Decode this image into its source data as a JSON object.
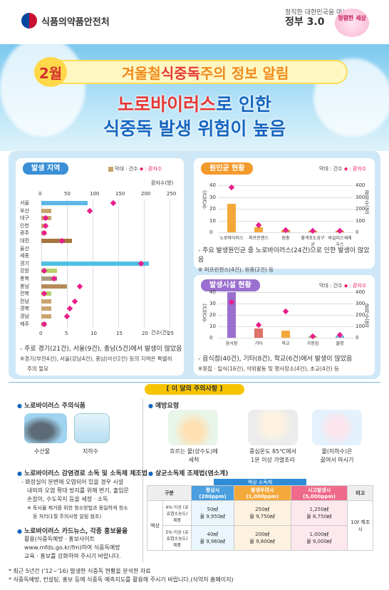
{
  "header": {
    "agency": "식품의약품안전처",
    "gov_small": "정직한 대한민국을 여는",
    "gov_big": "정부 3.0",
    "clean": "청렴한 세상"
  },
  "hero": {
    "month": "2월",
    "pre": "겨울철 ",
    "key": "식중독",
    "post": " 주의 정보 알림",
    "sub1_red": "노로바이러스",
    "sub1_rest": "로 인한",
    "sub2": "식중독 발생 위험이 높음"
  },
  "region": {
    "title": "발생 지역",
    "legend_cases": "막대 : 건수",
    "legend_pat": "◆ : 환자수",
    "pat_axis": "환자수(명)",
    "case_axis": "건수(건)",
    "top_ticks": [
      "0",
      "50",
      "100",
      "150",
      "200",
      "250"
    ],
    "bot_ticks": [
      "0",
      "5",
      "10",
      "15",
      "20",
      "25"
    ],
    "regions": [
      "서울",
      "부산",
      "대구",
      "인천",
      "광주",
      "대전",
      "울산",
      "세종",
      "경기",
      "강원",
      "충북",
      "충남",
      "전북",
      "전남",
      "경북",
      "경남",
      "제주"
    ],
    "cases": [
      9,
      2,
      2,
      1,
      1,
      6,
      0,
      0,
      21,
      3,
      3,
      5,
      2,
      2,
      2,
      2,
      1
    ],
    "patients": [
      140,
      95,
      8,
      8,
      5,
      40,
      0,
      0,
      195,
      5,
      25,
      75,
      5,
      65,
      55,
      50,
      5
    ],
    "note": "- 주로 경기(21건), 서울(9건), 충남(5건)에서 발생이 많았음",
    "note_s1": "※경기(부천4건), 서울(강남4건), 충남(아산2건) 등의 지역은 특별히",
    "note_s2": "주의 필요"
  },
  "cause": {
    "title": "원인균 현황",
    "legend_cases": "막대 : 건수",
    "legend_pat": "◆ : 환자수",
    "left_axis": "(건)건수",
    "right_axis": "환자수(명)",
    "left_ticks": [
      "0",
      "10",
      "20",
      "30",
      "40"
    ],
    "right_ticks": [
      "0",
      "100",
      "200",
      "300",
      "400"
    ],
    "labels": [
      "노로바이러스",
      "퍼프린젠스",
      "원충",
      "황색포도상구균",
      "바실러스세레우스"
    ],
    "cases": [
      24,
      4,
      2,
      1,
      1
    ],
    "patients": [
      380,
      60,
      20,
      10,
      15
    ],
    "note": "- 주요 발생원인균 중 노로바이러스(24건)으로 인한 발생이 많았음",
    "note_s": "※ 퍼프린젠스(4건), 원충(2건) 등"
  },
  "facility": {
    "title": "발생시설 현황",
    "legend_cases": "막대 : 건수",
    "legend_pat": "◆ : 환자수",
    "left_axis": "(건)건수",
    "right_axis": "환자수(명)",
    "left_ticks": [
      "0",
      "10",
      "20",
      "30",
      "40"
    ],
    "right_ticks": [
      "0",
      "100",
      "200",
      "300",
      "400"
    ],
    "labels": [
      "음식점",
      "기타",
      "학교",
      "가정집",
      "불명"
    ],
    "cases": [
      40,
      8,
      6,
      1,
      2
    ],
    "patients": [
      310,
      110,
      230,
      15,
      25
    ],
    "note": "- 음식점(40건), 기타(8건), 학교(6건)에서 발생이 많았음",
    "note_s": "※횟집 · 일식(16건), 야외활동 및 행사장소(4건), 초교(4건) 등"
  },
  "notice": {
    "title": "[ 이 달의 주의사항 ]",
    "foods_h": "노로바이러스 주의식품",
    "food1": "수산물",
    "food2": "지하수",
    "prevent_h": "예방요령",
    "p1a": "흐르는 물(상수도)에",
    "p1b": "세척",
    "p2a": "중심온도 85℃에서",
    "p2b": "1분 이상 가열조리",
    "p3a": "물(지하수)은",
    "p3b": "끓여서 마시기",
    "dis_h": "노로바이러스 감염경로 소독 및 소독제 제조법",
    "dis1": "- 화장실이 분변에 오염되어 있을 경우 시설",
    "dis2": "내외의 오염 확대 방지를 위해 변기, 출입문",
    "dis3": "손잡이, 수도꼭지 등을 세정 · 소독",
    "dis4": "※ 토사물 제거를 위한 청소방법과 동일하게 청소",
    "dis5": "등 처리(1월 주의사항 알림 참조)",
    "card_h": "노로바이러스 카드뉴스, 각종 홍보물을",
    "card1": "활용(식중독예방 · 홍보사이트",
    "card2": "www.mfds.go.kr/fm)하여 식중독예방",
    "card3": "교육 · 홍보를 강화하여 주시기 바랍니다.",
    "mix_h": "살균소독제 조제법(염소계)",
    "tbl_top": "액상 소독제",
    "col0": "구분",
    "col1": "평상시(200ppm)",
    "col2": "발생우려시(1,000ppm)",
    "col3": "시고발생시(5,000ppm)",
    "col4": "비고",
    "row_g": "액상",
    "r1": "4% 이상 (유효염소농도) 제품",
    "r2": "5% 이상 (유효염소농도) 제품",
    "r1c1a": "50㎖",
    "r1c1b": "물 9,950㎖",
    "r1c2a": "250㎖",
    "r1c2b": "물 9,750㎖",
    "r1c3a": "1,250㎖",
    "r1c3b": "물 8,750㎖",
    "r2c1a": "40㎖",
    "r2c1b": "물 9,960㎖",
    "r2c2a": "200㎖",
    "r2c2b": "물 9,800㎖",
    "r2c3a": "1,000㎖",
    "r2c3b": "물 9,000㎖",
    "note_col": "10ℓ 제조시"
  },
  "footer": {
    "f1": "* 최근 5년간 ('12~'16) 발생한 식중독 현황을 분석한 자료",
    "f2": "* 식중독예방, 컨설팅, 홍보 등에 식중독 예측지도를 활용해 주시기 바랍니다.(식약처 홈페이지)"
  }
}
